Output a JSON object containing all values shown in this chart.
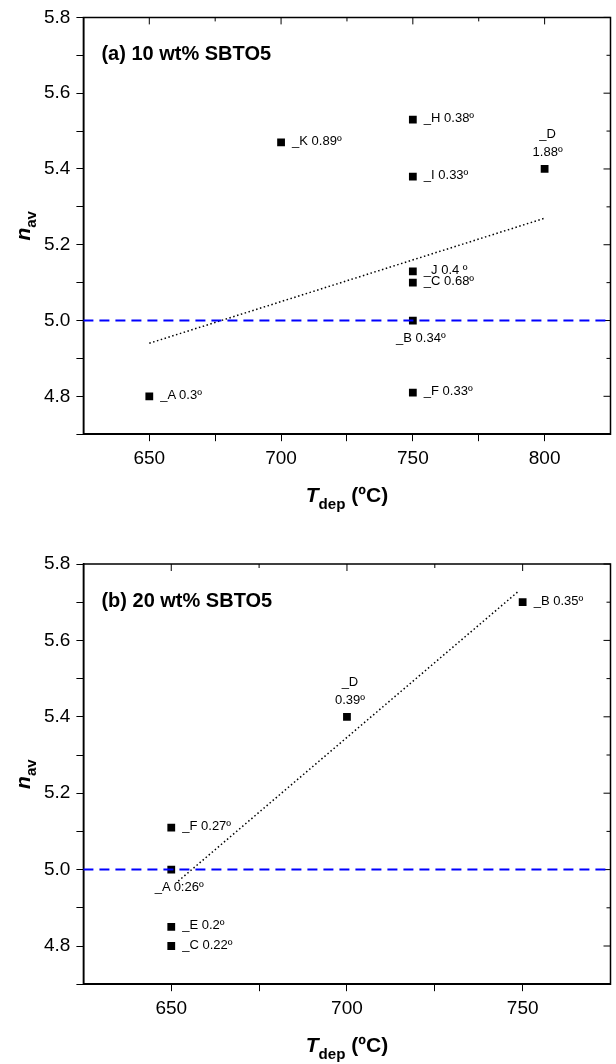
{
  "chart_data": [
    {
      "type": "scatter",
      "title": "(a) 10 wt% SBTO5",
      "xlabel": "T$_{dep}$ (ºC)",
      "ylabel": "n$_{av}$",
      "legend": false,
      "grid": false,
      "xlim": [
        625,
        825
      ],
      "xticks": [
        650,
        {
          "value": 675,
          "label": null
        },
        700,
        {
          "value": 725,
          "label": null
        },
        750,
        {
          "value": 775,
          "label": null
        },
        800
      ],
      "ylim": [
        4.7,
        5.8
      ],
      "yticks": [
        {
          "value": 4.7,
          "label": null
        },
        {
          "value": 4.8,
          "label": "4.8"
        },
        {
          "value": 4.9,
          "label": null
        },
        {
          "value": 5.0,
          "label": "5.0"
        },
        {
          "value": 5.1,
          "label": null
        },
        {
          "value": 5.2,
          "label": "5.2"
        },
        {
          "value": 5.3,
          "label": null
        },
        {
          "value": 5.4,
          "label": "5.4"
        },
        {
          "value": 5.5,
          "label": null
        },
        {
          "value": 5.6,
          "label": "5.6"
        },
        {
          "value": 5.7,
          "label": null
        },
        {
          "value": 5.8,
          "label": "5.8"
        }
      ],
      "x": [
        650,
        700,
        750,
        750,
        750,
        750,
        750,
        750,
        800
      ],
      "series": [
        {
          "marker": "square",
          "color": "#000000",
          "values": [
            4.8,
            5.47,
            5.53,
            5.38,
            5.13,
            5.1,
            5.0,
            4.81,
            5.4
          ]
        },
        {
          "type": "line",
          "color": "#000000",
          "line_style": "dotted",
          "x": [
            650,
            800
          ],
          "values": [
            4.94,
            5.27
          ]
        }
      ],
      "ref_lines": [
        {
          "axis": "y",
          "value": 5.0,
          "color": "#0000ff",
          "line_style": "dashed"
        }
      ],
      "annotations": [
        {
          "text": "_A 0.3º",
          "x": 650,
          "y": 4.8
        },
        {
          "text": "_K 0.89º",
          "x": 700,
          "y": 5.47
        },
        {
          "text": "_H 0.38º",
          "x": 750,
          "y": 5.53
        },
        {
          "text": "_I 0.33º",
          "x": 750,
          "y": 5.38
        },
        {
          "text": "_J 0.4 º",
          "x": 750,
          "y": 5.13
        },
        {
          "text": "_C 0.68º",
          "x": 750,
          "y": 5.1
        },
        {
          "text": "_B 0.34º",
          "x": 750,
          "y": 5.0
        },
        {
          "text": "_F 0.33º",
          "x": 750,
          "y": 4.81
        },
        {
          "text": "_D\n1.88º",
          "x": 800,
          "y": 5.4
        }
      ]
    },
    {
      "type": "scatter",
      "title": "(b) 20 wt% SBTO5",
      "xlabel": "T$_{dep}$ (ºC)",
      "ylabel": "n$_{av}$",
      "legend": false,
      "grid": false,
      "xlim": [
        625,
        775
      ],
      "xticks": [
        650,
        {
          "value": 675,
          "label": null
        },
        700,
        {
          "value": 725,
          "label": null
        },
        750
      ],
      "ylim": [
        4.7,
        5.8
      ],
      "yticks": [
        {
          "value": 4.7,
          "label": null
        },
        {
          "value": 4.8,
          "label": "4.8"
        },
        {
          "value": 4.9,
          "label": null
        },
        {
          "value": 5.0,
          "label": "5.0"
        },
        {
          "value": 5.1,
          "label": null
        },
        {
          "value": 5.2,
          "label": "5.2"
        },
        {
          "value": 5.3,
          "label": null
        },
        {
          "value": 5.4,
          "label": "5.4"
        },
        {
          "value": 5.5,
          "label": null
        },
        {
          "value": 5.6,
          "label": "5.6"
        },
        {
          "value": 5.7,
          "label": null
        },
        {
          "value": 5.8,
          "label": "5.8"
        }
      ],
      "x": [
        750,
        700,
        650,
        650,
        650,
        650
      ],
      "series": [
        {
          "marker": "square",
          "color": "#000000",
          "values": [
            5.7,
            5.4,
            5.11,
            5.0,
            4.85,
            4.8
          ]
        },
        {
          "type": "line",
          "color": "#000000",
          "line_style": "dotted",
          "x": [
            652,
            749
          ],
          "values": [
            4.97,
            5.73
          ]
        }
      ],
      "ref_lines": [
        {
          "axis": "y",
          "value": 5.0,
          "color": "#0000ff",
          "line_style": "dashed"
        }
      ],
      "annotations": [
        {
          "text": "_B 0.35º",
          "x": 750,
          "y": 5.7
        },
        {
          "text": "_D\n0.39º",
          "x": 700,
          "y": 5.4
        },
        {
          "text": "_F 0.27º",
          "x": 650,
          "y": 5.11
        },
        {
          "text": "_A 0:26º",
          "x": 650,
          "y": 5.0
        },
        {
          "text": "_E 0.2º",
          "x": 650,
          "y": 4.85
        },
        {
          "text": "_C 0.22º",
          "x": 650,
          "y": 4.8
        }
      ]
    }
  ]
}
